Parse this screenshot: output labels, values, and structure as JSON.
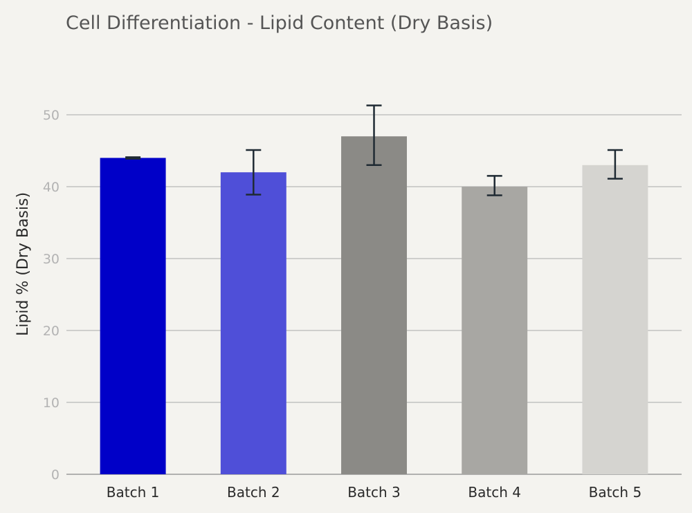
{
  "chart_data": {
    "type": "bar",
    "title": "Cell Differentiation - Lipid Content (Dry Basis)",
    "xlabel": "",
    "ylabel": "Lipid % (Dry Basis)",
    "ylim": [
      0,
      55
    ],
    "yticks": [
      0,
      10,
      20,
      30,
      40,
      50
    ],
    "grid": true,
    "categories": [
      "Batch 1",
      "Batch 2",
      "Batch 3",
      "Batch 4",
      "Batch 5"
    ],
    "values": [
      44,
      42,
      47,
      40,
      43
    ],
    "error_low": [
      43.9,
      38.9,
      43,
      38.8,
      41.1
    ],
    "error_high": [
      44.1,
      45.1,
      51.3,
      41.5,
      45.1
    ],
    "colors": [
      "#0000c8",
      "#4f4fd8",
      "#8b8a86",
      "#a8a7a3",
      "#d5d4d0"
    ]
  }
}
